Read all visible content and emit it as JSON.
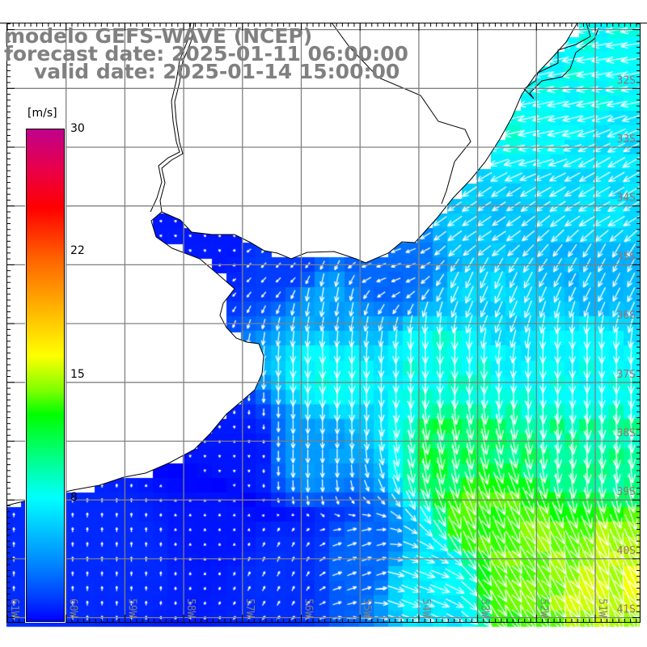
{
  "header": {
    "title": "modelo GEFS-WAVE (NCEP)",
    "forecast_date": "forecast date: 2025-01-11 06:00:00",
    "valid_date": "valid date: 2025-01-14 15:00:00"
  },
  "colorbar": {
    "unit": "[m/s]",
    "ticks": [
      "30",
      "22",
      "15",
      "8"
    ],
    "range": [
      0,
      30
    ]
  },
  "axes": {
    "lon_labels": [
      "61W",
      "60W",
      "59W",
      "58W",
      "57W",
      "56W",
      "55W",
      "54W",
      "53W",
      "52W",
      "51W"
    ],
    "lat_labels": [
      "32S",
      "33S",
      "34S",
      "35S",
      "36S",
      "37S",
      "38S",
      "39S",
      "40S",
      "41S"
    ],
    "lon_range": [
      -61,
      -50.2
    ],
    "lat_range": [
      -30.9,
      -41.1
    ]
  },
  "wind_field": {
    "units": "m/s",
    "anchors": [
      {
        "lon": -50.81,
        "lat": -31.32,
        "u": -9,
        "v": -1.5
      },
      {
        "lon": -52.18,
        "lat": -32.56,
        "u": -9,
        "v": -2
      },
      {
        "lon": -50.81,
        "lat": -33.94,
        "u": -7,
        "v": -4
      },
      {
        "lon": -52.87,
        "lat": -34.35,
        "u": -6,
        "v": -4
      },
      {
        "lon": -54.52,
        "lat": -34.9,
        "u": -4,
        "v": -1.5
      },
      {
        "lon": -56.31,
        "lat": -35.04,
        "u": -2,
        "v": -2
      },
      {
        "lon": -57.68,
        "lat": -34.62,
        "u": -1,
        "v": 0.5
      },
      {
        "lon": -55.62,
        "lat": -35.72,
        "u": -1,
        "v": -6
      },
      {
        "lon": -52.87,
        "lat": -35.45,
        "u": -3,
        "v": -7
      },
      {
        "lon": -50.81,
        "lat": -35.17,
        "u": -3,
        "v": -6
      },
      {
        "lon": -55.62,
        "lat": -36.82,
        "u": 0,
        "v": -9
      },
      {
        "lon": -53.56,
        "lat": -36.69,
        "u": 0,
        "v": -9.5
      },
      {
        "lon": -51.22,
        "lat": -36.69,
        "u": 0,
        "v": -9
      },
      {
        "lon": -55.9,
        "lat": -38.2,
        "u": 0,
        "v": -6
      },
      {
        "lon": -53.42,
        "lat": -38.2,
        "u": 2,
        "v": -11
      },
      {
        "lon": -51.22,
        "lat": -38.2,
        "u": 1,
        "v": -10.5
      },
      {
        "lon": -57.0,
        "lat": -38.2,
        "u": 0,
        "v": -1
      },
      {
        "lon": -57.41,
        "lat": -39.44,
        "u": 0,
        "v": 1
      },
      {
        "lon": -59.06,
        "lat": -39.85,
        "u": 0,
        "v": 2
      },
      {
        "lon": -60.44,
        "lat": -40.12,
        "u": 0,
        "v": 2
      },
      {
        "lon": -56.31,
        "lat": -40.12,
        "u": 1,
        "v": 2
      },
      {
        "lon": -54.93,
        "lat": -40.12,
        "u": 4,
        "v": 1.5
      },
      {
        "lon": -53.97,
        "lat": -40.4,
        "u": 8,
        "v": -3
      },
      {
        "lon": -52.18,
        "lat": -40.12,
        "u": 7,
        "v": -12
      },
      {
        "lon": -50.67,
        "lat": -40.4,
        "u": 6,
        "v": -14
      },
      {
        "lon": -52.87,
        "lat": -39.3,
        "u": 5,
        "v": -12
      }
    ]
  }
}
